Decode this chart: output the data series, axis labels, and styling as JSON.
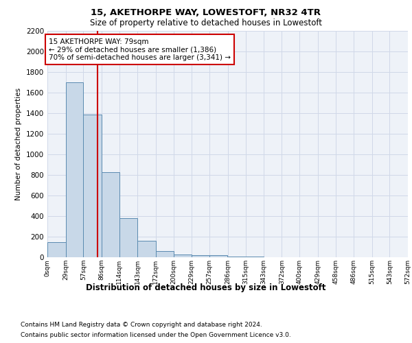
{
  "title": "15, AKETHORPE WAY, LOWESTOFT, NR32 4TR",
  "subtitle": "Size of property relative to detached houses in Lowestoft",
  "xlabel": "Distribution of detached houses by size in Lowestoft",
  "ylabel": "Number of detached properties",
  "footnote1": "Contains HM Land Registry data © Crown copyright and database right 2024.",
  "footnote2": "Contains public sector information licensed under the Open Government Licence v3.0.",
  "annotation_line1": "15 AKETHORPE WAY: 79sqm",
  "annotation_line2": "← 29% of detached houses are smaller (1,386)",
  "annotation_line3": "70% of semi-detached houses are larger (3,341) →",
  "bar_color": "#c8d8e8",
  "bar_edge_color": "#5a8ab0",
  "bar_heights": [
    150,
    1700,
    1390,
    830,
    380,
    160,
    60,
    30,
    20,
    20,
    10,
    5,
    0,
    0,
    0,
    0,
    0,
    0,
    0,
    0
  ],
  "bin_edges": [
    0,
    29,
    57,
    86,
    114,
    143,
    172,
    200,
    229,
    257,
    286,
    315,
    343,
    372,
    400,
    429,
    458,
    486,
    515,
    543,
    572
  ],
  "tick_labels": [
    "0sqm",
    "29sqm",
    "57sqm",
    "86sqm",
    "114sqm",
    "143sqm",
    "172sqm",
    "200sqm",
    "229sqm",
    "257sqm",
    "286sqm",
    "315sqm",
    "343sqm",
    "372sqm",
    "400sqm",
    "429sqm",
    "458sqm",
    "486sqm",
    "515sqm",
    "543sqm",
    "572sqm"
  ],
  "property_size": 79,
  "red_line_color": "#cc0000",
  "ylim": [
    0,
    2200
  ],
  "yticks": [
    0,
    200,
    400,
    600,
    800,
    1000,
    1200,
    1400,
    1600,
    1800,
    2000,
    2200
  ],
  "grid_color": "#d0d8e8",
  "background_color": "#eef2f8",
  "annotation_box_color": "#ffffff",
  "annotation_box_edge": "#cc0000"
}
